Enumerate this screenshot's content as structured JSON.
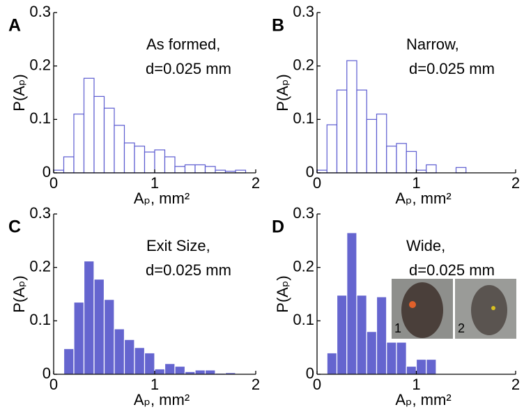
{
  "chart_data": [
    {
      "type": "histogram",
      "panel": "A",
      "annotation": [
        "As formed,",
        "d=0.025 mm"
      ],
      "ylabel": "P(Aₚ)",
      "xlabel": "Aₚ, mm²",
      "bins": [
        0,
        0.1,
        0.2,
        0.3,
        0.4,
        0.5,
        0.6,
        0.7,
        0.8,
        0.9,
        1.0,
        1.1,
        1.2,
        1.3,
        1.4,
        1.5,
        1.6,
        1.7,
        1.8,
        1.9
      ],
      "values": [
        0.005,
        0.03,
        0.11,
        0.177,
        0.143,
        0.121,
        0.089,
        0.056,
        0.05,
        0.039,
        0.043,
        0.03,
        0.012,
        0.015,
        0.015,
        0.012,
        0.005,
        0.003,
        0.005
      ],
      "color": "#5b5bd0",
      "filled": false,
      "xlim": [
        0,
        2
      ],
      "ylim": [
        0,
        0.3
      ],
      "xticks": [
        0,
        1,
        2
      ],
      "yticks": [
        0,
        0.1,
        0.2,
        0.3
      ]
    },
    {
      "type": "histogram",
      "panel": "B",
      "annotation": [
        "Narrow,",
        "d=0.025 mm"
      ],
      "ylabel": "P(Aₚ)",
      "xlabel": "Aₚ, mm²",
      "bins": [
        0,
        0.1,
        0.2,
        0.3,
        0.4,
        0.5,
        0.6,
        0.7,
        0.8,
        0.9,
        1.0,
        1.1,
        1.2,
        1.3,
        1.4,
        1.5
      ],
      "values": [
        0.005,
        0.09,
        0.155,
        0.21,
        0.155,
        0.1,
        0.11,
        0.05,
        0.055,
        0.04,
        0.005,
        0.015,
        0,
        0,
        0.01
      ],
      "color": "#5b5bd0",
      "filled": false,
      "xlim": [
        0,
        2
      ],
      "ylim": [
        0,
        0.3
      ],
      "xticks": [
        0,
        1,
        2
      ],
      "yticks": [
        0,
        0.1,
        0.2,
        0.3
      ]
    },
    {
      "type": "histogram",
      "panel": "C",
      "annotation": [
        "Exit Size,",
        "d=0.025 mm"
      ],
      "ylabel": "P(Aₚ)",
      "xlabel": "Aₚ, mm²",
      "bins": [
        0.1,
        0.2,
        0.3,
        0.4,
        0.5,
        0.6,
        0.7,
        0.8,
        0.9,
        1.0,
        1.1,
        1.2,
        1.3,
        1.4,
        1.5,
        1.6,
        1.7,
        1.8
      ],
      "values": [
        0.048,
        0.135,
        0.212,
        0.178,
        0.14,
        0.085,
        0.065,
        0.05,
        0.04,
        0.01,
        0.02,
        0.015,
        0.005,
        0.008,
        0.008,
        0.002,
        0.003
      ],
      "color": "#6565cf",
      "filled": true,
      "xlim": [
        0,
        2
      ],
      "ylim": [
        0,
        0.3
      ],
      "xticks": [
        0,
        1,
        2
      ],
      "yticks": [
        0,
        0.1,
        0.2,
        0.3
      ]
    },
    {
      "type": "histogram",
      "panel": "D",
      "annotation": [
        "Wide,",
        "d=0.025 mm"
      ],
      "ylabel": "P(Aₚ)",
      "xlabel": "Aₚ, mm²",
      "bins": [
        0.1,
        0.2,
        0.3,
        0.4,
        0.5,
        0.6,
        0.7,
        0.8,
        0.9,
        1.0,
        1.1,
        1.2
      ],
      "values": [
        0.04,
        0.148,
        0.265,
        0.148,
        0.08,
        0.145,
        0.06,
        0.06,
        0.015,
        0.028,
        0.028
      ],
      "color": "#6565cf",
      "filled": true,
      "xlim": [
        0,
        2
      ],
      "ylim": [
        0,
        0.3
      ],
      "xticks": [
        0,
        1,
        2
      ],
      "yticks": [
        0,
        0.1,
        0.2,
        0.3
      ],
      "inset_labels": [
        "1",
        "2"
      ]
    }
  ]
}
